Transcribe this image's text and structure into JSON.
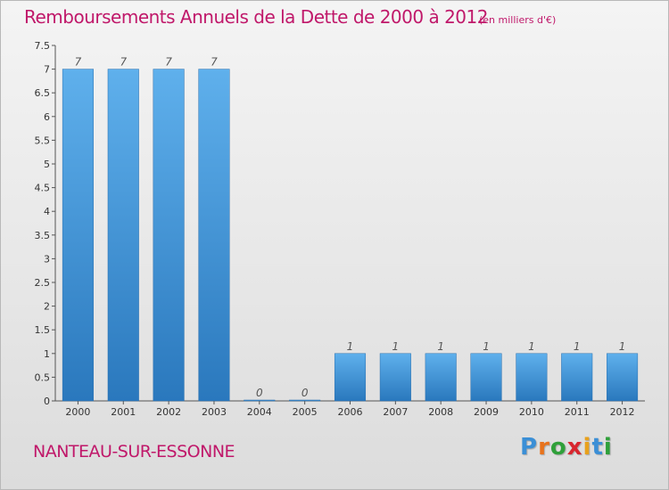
{
  "header": {
    "title": "Remboursements Annuels de la Dette de 2000 à 2012",
    "subtitle": "(en milliers d'€)"
  },
  "footer": {
    "commune": "NANTEAU-SUR-ESSONNE",
    "logo": [
      "P",
      "r",
      "o",
      "x",
      "i",
      "t",
      "i"
    ],
    "logo_colors": [
      "#3b8fd6",
      "#e8731c",
      "#2fa03a",
      "#d8262e",
      "#e8a11c",
      "#3b8fd6",
      "#2fa03a"
    ]
  },
  "chart_data": {
    "type": "bar",
    "title": "Remboursements Annuels de la Dette de 2000 à 2012",
    "subtitle": "(en milliers d'€)",
    "categories": [
      "2000",
      "2001",
      "2002",
      "2003",
      "2004",
      "2005",
      "2006",
      "2007",
      "2008",
      "2009",
      "2010",
      "2011",
      "2012"
    ],
    "values": [
      7,
      7,
      7,
      7,
      0,
      0,
      1,
      1,
      1,
      1,
      1,
      1,
      1
    ],
    "labels": [
      "7",
      "7",
      "7",
      "7",
      "0",
      "0",
      "1",
      "1",
      "1",
      "1",
      "1",
      "1",
      "1"
    ],
    "ylim": [
      0,
      7.5
    ],
    "yticks": [
      "0",
      "0.5",
      "1",
      "1.5",
      "2",
      "2.5",
      "3",
      "3.5",
      "4",
      "4.5",
      "5",
      "5.5",
      "6",
      "6.5",
      "7",
      "7.5"
    ],
    "bar_color": "#4a9fe0",
    "grid": false
  }
}
